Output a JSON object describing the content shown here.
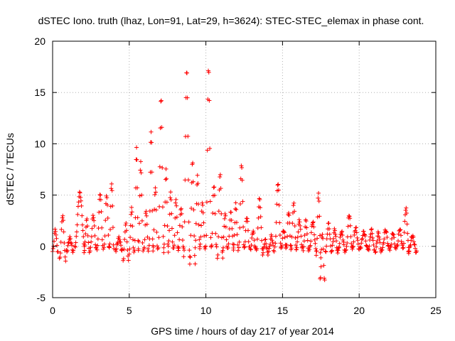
{
  "chart_data": {
    "type": "scatter",
    "title": "dSTEC Iono. truth (lhaz, Lon=91, Lat=29, h=3624): STEC-STEC_elemax in phase cont.",
    "xlabel": "GPS time / hours of day 217 of year 2014",
    "ylabel": "dSTEC  / TECUs",
    "xlim": [
      0,
      25
    ],
    "ylim": [
      -5,
      20
    ],
    "xticks": [
      0,
      5,
      10,
      15,
      20,
      25
    ],
    "yticks": [
      -5,
      0,
      5,
      10,
      15,
      20
    ],
    "grid": true,
    "marker": "+",
    "color": "#ff0000",
    "series": [
      {
        "name": "dSTEC",
        "segments": [
          {
            "t0": 0.0,
            "t1": 0.35,
            "peak": 1.6,
            "low": -0.5
          },
          {
            "t0": 0.45,
            "t1": 0.85,
            "peak": 3.0,
            "low": -1.3
          },
          {
            "t0": 0.9,
            "t1": 1.35,
            "peak": 0.8,
            "low": -0.5
          },
          {
            "t0": 1.45,
            "t1": 2.1,
            "peak": 5.2,
            "low": 0.0
          },
          {
            "t0": 2.05,
            "t1": 2.4,
            "peak": 2.6,
            "low": -0.5
          },
          {
            "t0": 2.45,
            "t1": 2.85,
            "peak": 3.0,
            "low": -0.3
          },
          {
            "t0": 2.9,
            "t1": 3.3,
            "peak": 5.2,
            "low": -0.3
          },
          {
            "t0": 3.35,
            "t1": 3.7,
            "peak": 5.0,
            "low": -0.2
          },
          {
            "t0": 3.7,
            "t1": 4.0,
            "peak": 6.2,
            "low": -0.2
          },
          {
            "t0": 4.1,
            "t1": 4.55,
            "peak": 0.8,
            "low": -0.4
          },
          {
            "t0": 4.6,
            "t1": 4.95,
            "peak": 2.2,
            "low": -1.3
          },
          {
            "t0": 5.0,
            "t1": 5.3,
            "peak": 3.7,
            "low": -0.6
          },
          {
            "t0": 5.35,
            "t1": 5.6,
            "peak": 9.5,
            "low": -0.3
          },
          {
            "t0": 5.6,
            "t1": 5.9,
            "peak": 8.2,
            "low": -0.3
          },
          {
            "t0": 5.95,
            "t1": 6.25,
            "peak": 3.5,
            "low": -0.4
          },
          {
            "t0": 6.3,
            "t1": 6.55,
            "peak": 11.3,
            "low": 0.0
          },
          {
            "t0": 6.55,
            "t1": 6.85,
            "peak": 5.8,
            "low": -0.4
          },
          {
            "t0": 6.9,
            "t1": 7.25,
            "peak": 14.4,
            "low": 0.0
          },
          {
            "t0": 7.25,
            "t1": 7.55,
            "peak": 7.4,
            "low": -0.5
          },
          {
            "t0": 7.55,
            "t1": 7.85,
            "peak": 5.2,
            "low": 0.0
          },
          {
            "t0": 7.9,
            "t1": 8.2,
            "peak": 4.6,
            "low": -0.3
          },
          {
            "t0": 8.2,
            "t1": 8.55,
            "peak": 3.8,
            "low": -0.3
          },
          {
            "t0": 8.55,
            "t1": 8.95,
            "peak": 17.1,
            "low": -1.0
          },
          {
            "t0": 8.95,
            "t1": 9.3,
            "peak": 8.2,
            "low": -1.6
          },
          {
            "t0": 9.3,
            "t1": 9.6,
            "peak": 6.8,
            "low": 0.0
          },
          {
            "t0": 9.6,
            "t1": 9.95,
            "peak": 4.2,
            "low": -0.2
          },
          {
            "t0": 10.0,
            "t1": 10.35,
            "peak": 17.5,
            "low": -0.1
          },
          {
            "t0": 10.35,
            "t1": 10.7,
            "peak": 6.0,
            "low": -0.2
          },
          {
            "t0": 10.75,
            "t1": 11.1,
            "peak": 7.1,
            "low": -1.2
          },
          {
            "t0": 11.1,
            "t1": 11.4,
            "peak": 3.2,
            "low": -0.3
          },
          {
            "t0": 11.45,
            "t1": 11.8,
            "peak": 3.3,
            "low": 0.0
          },
          {
            "t0": 11.8,
            "t1": 12.1,
            "peak": 4.1,
            "low": -0.3
          },
          {
            "t0": 12.15,
            "t1": 12.5,
            "peak": 8.0,
            "low": -0.2
          },
          {
            "t0": 12.5,
            "t1": 12.85,
            "peak": 2.9,
            "low": -0.2
          },
          {
            "t0": 12.9,
            "t1": 13.25,
            "peak": 1.5,
            "low": -0.3
          },
          {
            "t0": 13.3,
            "t1": 13.7,
            "peak": 4.6,
            "low": -0.3
          },
          {
            "t0": 13.7,
            "t1": 14.05,
            "peak": 0.6,
            "low": -0.7
          },
          {
            "t0": 14.1,
            "t1": 14.45,
            "peak": 1.0,
            "low": -0.4
          },
          {
            "t0": 14.5,
            "t1": 14.9,
            "peak": 6.2,
            "low": -0.1
          },
          {
            "t0": 14.9,
            "t1": 15.25,
            "peak": 1.6,
            "low": -0.2
          },
          {
            "t0": 15.25,
            "t1": 15.55,
            "peak": 3.4,
            "low": 0.0
          },
          {
            "t0": 15.55,
            "t1": 15.9,
            "peak": 4.2,
            "low": -0.3
          },
          {
            "t0": 15.9,
            "t1": 16.3,
            "peak": 2.5,
            "low": -0.2
          },
          {
            "t0": 16.35,
            "t1": 16.7,
            "peak": 2.5,
            "low": -0.3
          },
          {
            "t0": 16.75,
            "t1": 17.2,
            "peak": 2.4,
            "low": -0.3
          },
          {
            "t0": 17.2,
            "t1": 17.5,
            "peak": 5.2,
            "low": -1.0
          },
          {
            "t0": 17.45,
            "t1": 17.75,
            "peak": 1.3,
            "low": -3.3
          },
          {
            "t0": 17.8,
            "t1": 18.2,
            "peak": 2.2,
            "low": -0.5
          },
          {
            "t0": 18.2,
            "t1": 18.6,
            "peak": 1.6,
            "low": -0.4
          },
          {
            "t0": 18.6,
            "t1": 19.1,
            "peak": 1.4,
            "low": -0.5
          },
          {
            "t0": 19.15,
            "t1": 19.55,
            "peak": 3.1,
            "low": -0.3
          },
          {
            "t0": 19.55,
            "t1": 20.0,
            "peak": 1.8,
            "low": -0.2
          },
          {
            "t0": 20.05,
            "t1": 20.55,
            "peak": 1.4,
            "low": -0.2
          },
          {
            "t0": 20.6,
            "t1": 21.0,
            "peak": 1.6,
            "low": -0.3
          },
          {
            "t0": 21.05,
            "t1": 21.45,
            "peak": 1.3,
            "low": -0.5
          },
          {
            "t0": 21.5,
            "t1": 21.95,
            "peak": 1.6,
            "low": -0.2
          },
          {
            "t0": 22.0,
            "t1": 22.4,
            "peak": 1.3,
            "low": -0.3
          },
          {
            "t0": 22.45,
            "t1": 22.85,
            "peak": 1.7,
            "low": -0.1
          },
          {
            "t0": 22.85,
            "t1": 23.25,
            "peak": 3.7,
            "low": -0.3
          },
          {
            "t0": 23.2,
            "t1": 23.75,
            "peak": 1.0,
            "low": -0.6
          }
        ]
      }
    ]
  }
}
